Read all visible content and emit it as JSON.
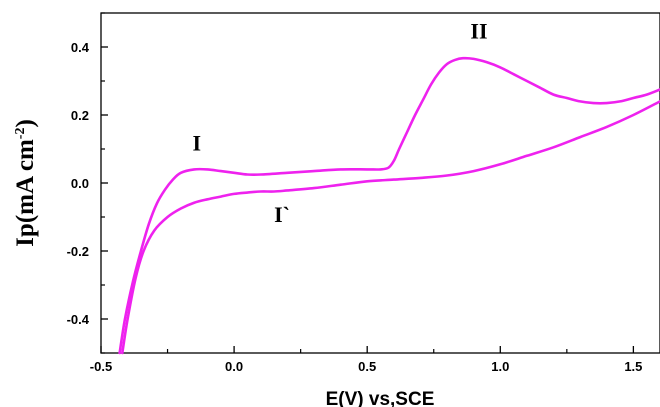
{
  "chart_data": {
    "type": "line",
    "title": "",
    "xlabel": "E(V) vs,SCE",
    "ylabel": "Ip(mA cm",
    "ylabel_sup": "-2",
    "ylabel_close": ")",
    "xlim": [
      -0.5,
      1.6
    ],
    "ylim": [
      -0.5,
      0.5
    ],
    "x_ticks": [
      -0.5,
      0.0,
      0.5,
      1.0,
      1.5
    ],
    "x_tick_labels": [
      "-0.5",
      "0.0",
      "0.5",
      "1.0",
      "1.5"
    ],
    "y_ticks": [
      -0.4,
      -0.2,
      0.0,
      0.2,
      0.4
    ],
    "y_tick_labels": [
      "-0.4",
      "-0.2",
      "0.0",
      "0.2",
      "0.4"
    ],
    "grid": false,
    "legend": "none",
    "line_color": "#ee22ee",
    "series": [
      {
        "x": [
          -0.43,
          -0.41,
          -0.38,
          -0.35,
          -0.32,
          -0.29,
          -0.26,
          -0.23,
          -0.2,
          -0.15,
          -0.1,
          -0.05,
          0.0,
          0.05,
          0.1,
          0.2,
          0.3,
          0.4,
          0.5,
          0.55,
          0.58,
          0.6,
          0.62,
          0.65,
          0.68,
          0.71,
          0.74,
          0.77,
          0.8,
          0.83,
          0.86,
          0.9,
          0.95,
          1.0,
          1.05,
          1.1,
          1.15,
          1.2,
          1.25,
          1.3,
          1.35,
          1.4,
          1.45,
          1.5,
          1.55,
          1.6
        ],
        "y": [
          -0.5,
          -0.4,
          -0.29,
          -0.2,
          -0.12,
          -0.06,
          -0.02,
          0.01,
          0.03,
          0.04,
          0.04,
          0.035,
          0.03,
          0.025,
          0.025,
          0.03,
          0.035,
          0.04,
          0.04,
          0.04,
          0.045,
          0.065,
          0.1,
          0.15,
          0.2,
          0.245,
          0.29,
          0.325,
          0.35,
          0.362,
          0.367,
          0.365,
          0.355,
          0.34,
          0.32,
          0.3,
          0.28,
          0.26,
          0.25,
          0.24,
          0.235,
          0.235,
          0.24,
          0.25,
          0.26,
          0.275
        ]
      },
      {
        "x": [
          1.6,
          1.5,
          1.4,
          1.3,
          1.2,
          1.1,
          1.0,
          0.9,
          0.8,
          0.7,
          0.6,
          0.5,
          0.4,
          0.3,
          0.2,
          0.15,
          0.1,
          0.05,
          0.0,
          -0.05,
          -0.1,
          -0.15,
          -0.2,
          -0.25,
          -0.3,
          -0.34,
          -0.37,
          -0.4,
          -0.42
        ],
        "y": [
          0.24,
          0.2,
          0.165,
          0.135,
          0.105,
          0.08,
          0.055,
          0.035,
          0.022,
          0.015,
          0.01,
          0.005,
          -0.005,
          -0.015,
          -0.022,
          -0.025,
          -0.025,
          -0.028,
          -0.032,
          -0.04,
          -0.048,
          -0.058,
          -0.075,
          -0.1,
          -0.14,
          -0.2,
          -0.28,
          -0.4,
          -0.5
        ]
      }
    ],
    "annotations": [
      {
        "text": "I",
        "x": -0.14,
        "y": 0.095
      },
      {
        "text": "II",
        "x": 0.92,
        "y": 0.425
      },
      {
        "text": "I`",
        "x": 0.18,
        "y": -0.115
      }
    ]
  }
}
